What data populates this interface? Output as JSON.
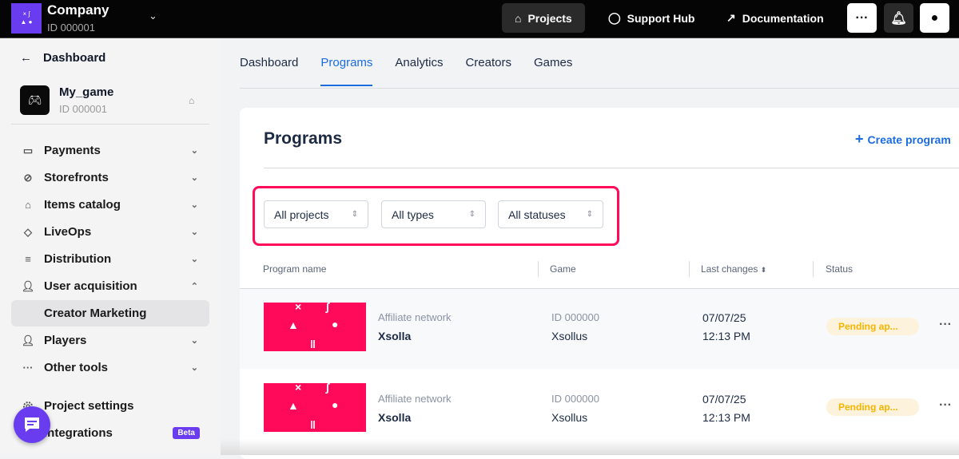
{
  "topbar": {
    "company": "Company",
    "company_id": "ID 000001",
    "logo_text": "× ∫ ▲ ● ▮",
    "projects": "Projects",
    "support": "Support Hub",
    "docs": "Documentation",
    "more": "···"
  },
  "sidebar": {
    "back": "Dashboard",
    "game_name": "My_game",
    "game_id": "ID 000001",
    "items": [
      {
        "label": "Payments",
        "icon": "wallet-icon"
      },
      {
        "label": "Storefronts",
        "icon": "link-icon"
      },
      {
        "label": "Items catalog",
        "icon": "store-icon"
      },
      {
        "label": "LiveOps",
        "icon": "tag-icon"
      },
      {
        "label": "Distribution",
        "icon": "sliders-icon"
      },
      {
        "label": "User acquisition",
        "icon": "user-plus-icon"
      },
      {
        "label": "Creator Marketing"
      },
      {
        "label": "Players",
        "icon": "user-icon"
      },
      {
        "label": "Other tools",
        "icon": "dots-icon"
      },
      {
        "label": "Project settings",
        "icon": "gear-icon"
      },
      {
        "label": "Integrations",
        "badge": "Beta"
      }
    ]
  },
  "tabs": [
    {
      "label": "Dashboard"
    },
    {
      "label": "Programs",
      "active": true
    },
    {
      "label": "Analytics"
    },
    {
      "label": "Creators"
    },
    {
      "label": "Games"
    }
  ],
  "main": {
    "title": "Programs",
    "create": "Create program",
    "filters": [
      "All projects",
      "All types",
      "All statuses"
    ],
    "columns": [
      "Program name",
      "Game",
      "Last changes",
      "Status"
    ],
    "rows": [
      {
        "type": "Affiliate network",
        "name": "Xsolla",
        "game_id": "ID 000000",
        "game": "Xsollus",
        "date": "07/07/25",
        "time": "12:13 PM",
        "status": "Pending ap..."
      },
      {
        "type": "Affiliate network",
        "name": "Xsolla",
        "game_id": "ID 000000",
        "game": "Xsollus",
        "date": "07/07/25",
        "time": "12:13 PM",
        "status": "Pending ap..."
      }
    ]
  },
  "colors": {
    "accent": "#1b6ce0",
    "brand": "#6a3cf0",
    "highlight": "#ff0b5a",
    "pending": "#f5b400"
  }
}
